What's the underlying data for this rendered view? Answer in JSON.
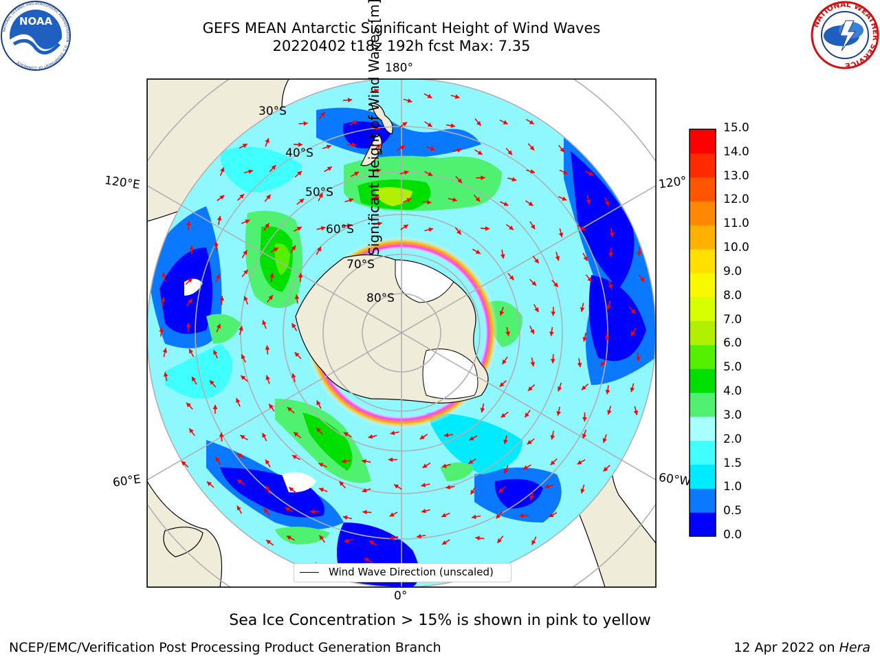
{
  "header": {
    "title_line1": "GEFS MEAN Antarctic Significant Height of Wind Waves",
    "title_line2": "20220402 t18z 192h fcst   Max: 7.35"
  },
  "logos": {
    "noaa_text": "NOAA",
    "noaa_ring": "NATIONAL OCEANIC AND ATMOSPHERIC ADMINISTRATION · U.S. DEPARTMENT OF COMMERCE",
    "nws_ring": "NATIONAL WEATHER SERVICE"
  },
  "map": {
    "labels": {
      "top": "180°",
      "bottom": "0°",
      "left_upper": "120°E",
      "left_lower": "60°E",
      "right_upper": "120°",
      "right_lower": "60°W",
      "lat30": "30°S",
      "lat40": "40°S",
      "lat50": "50°S",
      "lat60": "60°S",
      "lat70": "70°S",
      "lat80": "80°S"
    },
    "legend": "Wind Wave Direction (unscaled)",
    "colors": {
      "land": "#efedd9",
      "ice": "#ffffff",
      "grid": "#b0b0b0",
      "arrow": "#ff0000"
    }
  },
  "colorbar": {
    "label": "Significant Height of Wind Waves [m]",
    "ticks": [
      "0.0",
      "0.5",
      "1.0",
      "1.5",
      "2.0",
      "3.0",
      "4.0",
      "5.0",
      "6.0",
      "7.0",
      "8.0",
      "9.0",
      "10.0",
      "11.0",
      "12.0",
      "13.0",
      "14.0",
      "15.0"
    ],
    "colors": [
      "#0000ff",
      "#0a78ff",
      "#00ebff",
      "#40ffff",
      "#a8ffff",
      "#50f070",
      "#00e000",
      "#55f000",
      "#b0f000",
      "#d8ff00",
      "#f8f800",
      "#ffe000",
      "#ffb000",
      "#ff8800",
      "#ff5500",
      "#ff2a00",
      "#ff0000"
    ]
  },
  "footer": {
    "note": "Sea Ice Concentration > 15% is shown in pink to yellow",
    "left": "NCEP/EMC/Verification Post Processing Product Generation Branch",
    "right_prefix": "12 Apr 2022 on ",
    "right_em": "Hera"
  }
}
